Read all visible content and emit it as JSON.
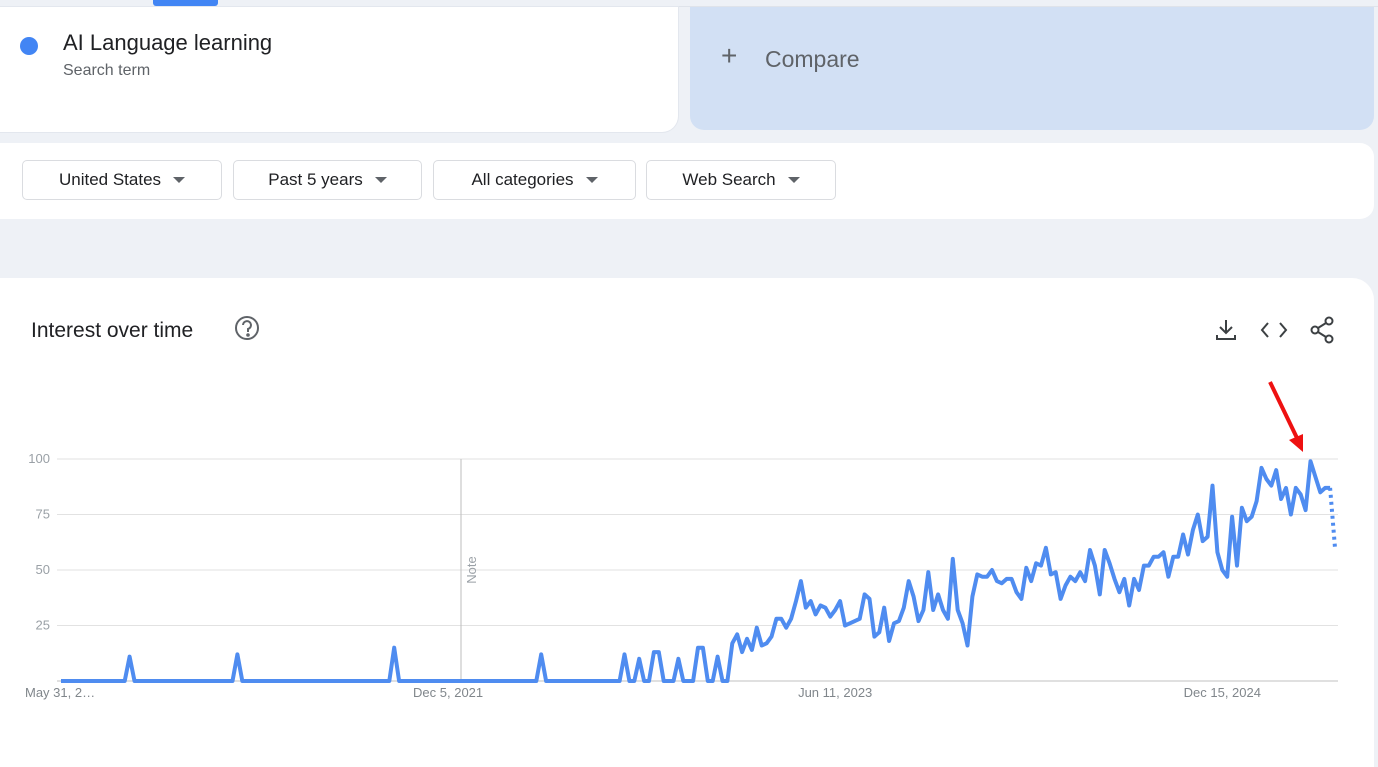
{
  "search_term": {
    "name": "AI Language learning",
    "subtitle": "Search term"
  },
  "compare": "Compare",
  "filters": [
    "United States",
    "Past 5 years",
    "All categories",
    "Web Search"
  ],
  "chart_data": {
    "type": "line",
    "title": "Interest over time",
    "color": "#4f8cf0",
    "dotted_last_segment": true,
    "grid": true,
    "annotations": [
      "Note"
    ],
    "ylim": [
      0,
      100
    ],
    "yticks": [
      25,
      50,
      75,
      100
    ],
    "categories": [
      "May 31, 2…",
      null,
      null,
      null,
      null,
      null,
      null,
      null,
      null,
      null,
      null,
      null,
      null,
      null,
      null,
      null,
      null,
      null,
      null,
      null,
      null,
      null,
      null,
      null,
      null,
      null,
      null,
      null,
      null,
      null,
      null,
      null,
      null,
      null,
      null,
      null,
      null,
      null,
      null,
      null,
      null,
      null,
      null,
      null,
      null,
      null,
      null,
      null,
      null,
      null,
      null,
      null,
      null,
      null,
      null,
      null,
      null,
      null,
      null,
      null,
      null,
      null,
      null,
      null,
      null,
      null,
      null,
      null,
      null,
      null,
      null,
      null,
      null,
      null,
      null,
      null,
      null,
      null,
      null,
      "Dec 5, 2021",
      null,
      null,
      null,
      null,
      null,
      null,
      null,
      null,
      null,
      null,
      null,
      null,
      null,
      null,
      null,
      null,
      null,
      null,
      null,
      null,
      null,
      null,
      null,
      null,
      null,
      null,
      null,
      null,
      null,
      null,
      null,
      null,
      null,
      null,
      null,
      null,
      null,
      null,
      null,
      null,
      null,
      null,
      null,
      null,
      null,
      null,
      null,
      null,
      null,
      null,
      null,
      null,
      null,
      null,
      null,
      null,
      null,
      null,
      null,
      null,
      null,
      null,
      null,
      null,
      null,
      null,
      null,
      null,
      null,
      null,
      null,
      null,
      null,
      null,
      null,
      null,
      null,
      null,
      "Jun 11, 2023",
      null,
      null,
      null,
      null,
      null,
      null,
      null,
      null,
      null,
      null,
      null,
      null,
      null,
      null,
      null,
      null,
      null,
      null,
      null,
      null,
      null,
      null,
      null,
      null,
      null,
      null,
      null,
      null,
      null,
      null,
      null,
      null,
      null,
      null,
      null,
      null,
      null,
      null,
      null,
      null,
      null,
      null,
      null,
      null,
      null,
      null,
      null,
      null,
      null,
      null,
      null,
      null,
      null,
      null,
      null,
      null,
      null,
      null,
      null,
      null,
      null,
      null,
      null,
      null,
      null,
      null,
      null,
      null,
      null,
      null,
      null,
      null,
      null,
      null,
      null,
      null,
      null,
      null,
      "Dec 15, 2024",
      null,
      null,
      null,
      null,
      null,
      null,
      null,
      null,
      null,
      null,
      null,
      null,
      null,
      null,
      null,
      null,
      null,
      null,
      null,
      null,
      null,
      null,
      null
    ],
    "values": [
      0,
      0,
      0,
      0,
      0,
      0,
      0,
      0,
      0,
      0,
      0,
      0,
      0,
      0,
      11,
      0,
      0,
      0,
      0,
      0,
      0,
      0,
      0,
      0,
      0,
      0,
      0,
      0,
      0,
      0,
      0,
      0,
      0,
      0,
      0,
      0,
      12,
      0,
      0,
      0,
      0,
      0,
      0,
      0,
      0,
      0,
      0,
      0,
      0,
      0,
      0,
      0,
      0,
      0,
      0,
      0,
      0,
      0,
      0,
      0,
      0,
      0,
      0,
      0,
      0,
      0,
      0,
      0,
      15,
      0,
      0,
      0,
      0,
      0,
      0,
      0,
      0,
      0,
      0,
      0,
      0,
      0,
      0,
      0,
      0,
      0,
      0,
      0,
      0,
      0,
      0,
      0,
      0,
      0,
      0,
      0,
      0,
      0,
      12,
      0,
      0,
      0,
      0,
      0,
      0,
      0,
      0,
      0,
      0,
      0,
      0,
      0,
      0,
      0,
      0,
      12,
      0,
      0,
      10,
      0,
      0,
      13,
      13,
      0,
      0,
      0,
      10,
      0,
      0,
      0,
      15,
      15,
      0,
      0,
      11,
      0,
      0,
      17,
      21,
      13,
      19,
      14,
      24,
      16,
      17,
      20,
      28,
      28,
      24,
      28,
      36,
      45,
      33,
      36,
      30,
      34,
      33,
      29,
      32,
      36,
      25,
      26,
      27,
      28,
      39,
      37,
      20,
      22,
      33,
      18,
      26,
      27,
      33,
      45,
      38,
      27,
      32,
      49,
      32,
      39,
      32,
      28,
      55,
      32,
      26,
      16,
      38,
      48,
      47,
      47,
      50,
      45,
      44,
      46,
      46,
      40,
      37,
      51,
      45,
      53,
      52,
      60,
      48,
      49,
      37,
      43,
      47,
      45,
      49,
      45,
      59,
      52,
      39,
      59,
      53,
      46,
      40,
      46,
      34,
      46,
      41,
      52,
      52,
      56,
      56,
      58,
      47,
      56,
      56,
      66,
      57,
      68,
      75,
      63,
      65,
      88,
      58,
      50,
      47,
      74,
      52,
      78,
      72,
      74,
      81,
      96,
      91,
      88,
      95,
      82,
      87,
      75,
      87,
      84,
      77,
      99,
      92,
      85,
      87,
      87,
      60
    ]
  }
}
